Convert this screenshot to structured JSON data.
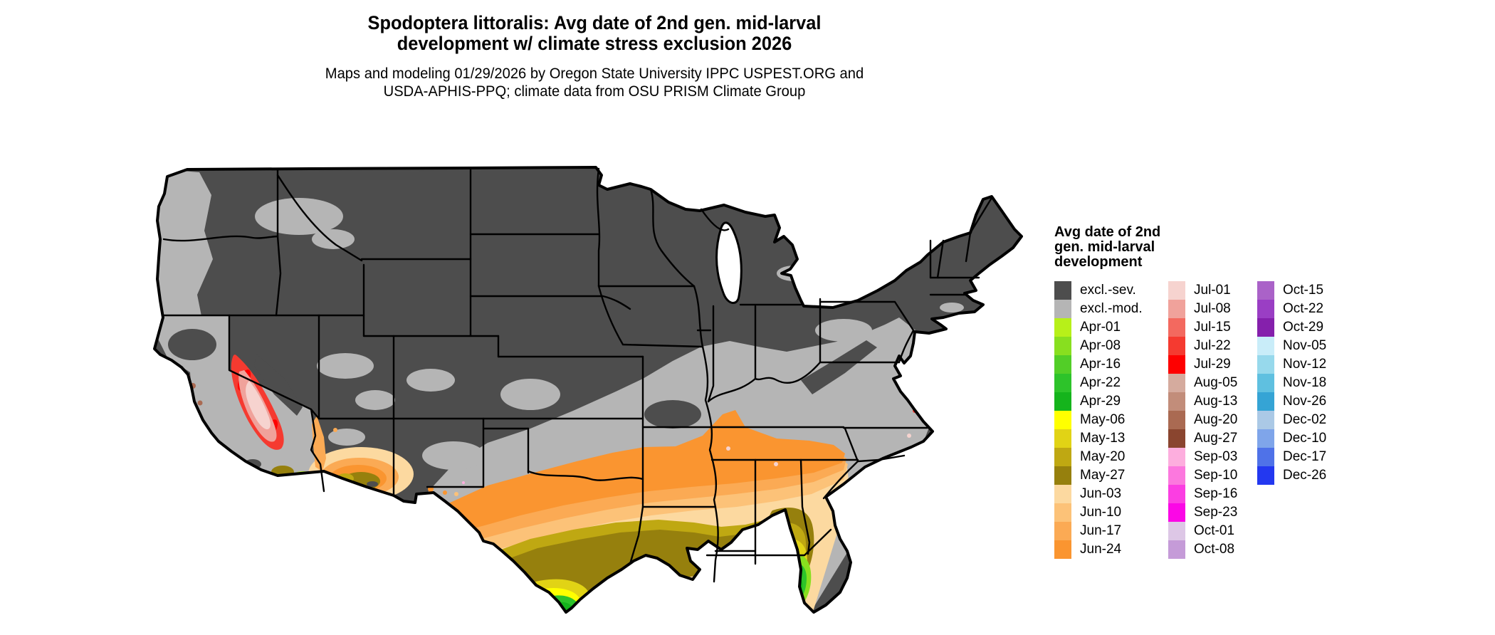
{
  "title": {
    "line1": "Spodoptera littoralis: Avg date of 2nd gen. mid-larval",
    "line2": "development w/ climate stress exclusion 2026"
  },
  "subtitle": {
    "line1": "Maps and modeling 01/29/2026 by Oregon State University IPPC USPEST.ORG and",
    "line2": "USDA-APHIS-PPQ; climate data from OSU PRISM Climate Group"
  },
  "legend": {
    "title_lines": [
      "Avg date of 2nd",
      "gen. mid-larval",
      "development"
    ],
    "columns": [
      [
        "excl.-sev.",
        "excl.-mod.",
        "Apr-01",
        "Apr-08",
        "Apr-16",
        "Apr-22",
        "Apr-29",
        "May-06",
        "May-13",
        "May-20",
        "May-27",
        "Jun-03",
        "Jun-10",
        "Jun-17",
        "Jun-24"
      ],
      [
        "Jul-01",
        "Jul-08",
        "Jul-15",
        "Jul-22",
        "Jul-29",
        "Aug-05",
        "Aug-13",
        "Aug-20",
        "Aug-27",
        "Sep-03",
        "Sep-10",
        "Sep-16",
        "Sep-23",
        "Oct-01",
        "Oct-08"
      ],
      [
        "Oct-15",
        "Oct-22",
        "Oct-29",
        "Nov-05",
        "Nov-12",
        "Nov-18",
        "Nov-26",
        "Dec-02",
        "Dec-10",
        "Dec-17",
        "Dec-26"
      ]
    ]
  },
  "palette": {
    "excl.-sev.": "#4d4d4d",
    "excl.-mod.": "#b5b5b5",
    "Apr-01": "#b7f019",
    "Apr-08": "#88df1f",
    "Apr-16": "#52ce27",
    "Apr-22": "#2dc32a",
    "Apr-29": "#15b41c",
    "May-06": "#ffff00",
    "May-13": "#e1d315",
    "May-20": "#bfa812",
    "May-27": "#96800d",
    "Jun-03": "#fcd9a0",
    "Jun-10": "#fcc278",
    "Jun-17": "#fbaa54",
    "Jun-24": "#fa9530",
    "Jul-01": "#f6d3cf",
    "Jul-08": "#f0a29b",
    "Jul-15": "#f3695f",
    "Jul-22": "#f53a30",
    "Jul-29": "#fe0000",
    "Aug-05": "#d5ab9e",
    "Aug-13": "#c28d7a",
    "Aug-20": "#aa6a52",
    "Aug-27": "#8a452f",
    "Sep-03": "#fdaede",
    "Sep-10": "#fc78de",
    "Sep-16": "#fb3ee2",
    "Sep-23": "#fb07e6",
    "Oct-01": "#ddc7e6",
    "Oct-08": "#c59bd8",
    "Oct-15": "#aa62c8",
    "Oct-22": "#9a3ec4",
    "Oct-29": "#8520ac",
    "Nov-05": "#c9edf9",
    "Nov-12": "#97d9ec",
    "Nov-18": "#5fc0e0",
    "Nov-26": "#35a4d5",
    "Dec-02": "#abc9e6",
    "Dec-10": "#7fa5ea",
    "Dec-17": "#4f72e8",
    "Dec-26": "#2338f0"
  },
  "map": {
    "region": "Continental United States",
    "outline_color": "#000000",
    "background": "#ffffff",
    "regions_depicted": {
      "northern_and_mountain_states": "excl.-sev.",
      "central_band_plains_to_mid_atlantic": "excl.-mod.",
      "gulf_south_band": "Jun-03 to Jun-24",
      "gulf_coast_strip": "May-20 to May-27",
      "south_texas_and_central_florida": "May-06 to May-13",
      "south_texas_tip_and_south_florida": "Apr-16 to Apr-29",
      "california_central_valley": "Jul-01 to Jul-29",
      "california_coast_spots": "Aug-05 to Aug-27, Sep, Oct, Dec specks",
      "arizona_low_desert": "May-20 to Jun-24"
    }
  },
  "chart_data": {
    "type": "heatmap",
    "title": "Avg date of 2nd gen. mid-larval development",
    "legend_entries": [
      "excl.-sev.",
      "excl.-mod.",
      "Apr-01",
      "Apr-08",
      "Apr-16",
      "Apr-22",
      "Apr-29",
      "May-06",
      "May-13",
      "May-20",
      "May-27",
      "Jun-03",
      "Jun-10",
      "Jun-17",
      "Jun-24",
      "Jul-01",
      "Jul-08",
      "Jul-15",
      "Jul-22",
      "Jul-29",
      "Aug-05",
      "Aug-13",
      "Aug-20",
      "Aug-27",
      "Sep-03",
      "Sep-10",
      "Sep-16",
      "Sep-23",
      "Oct-01",
      "Oct-08",
      "Oct-15",
      "Oct-22",
      "Oct-29",
      "Nov-05",
      "Nov-12",
      "Nov-18",
      "Nov-26",
      "Dec-02",
      "Dec-10",
      "Dec-17",
      "Dec-26"
    ],
    "legend_position": "right"
  }
}
